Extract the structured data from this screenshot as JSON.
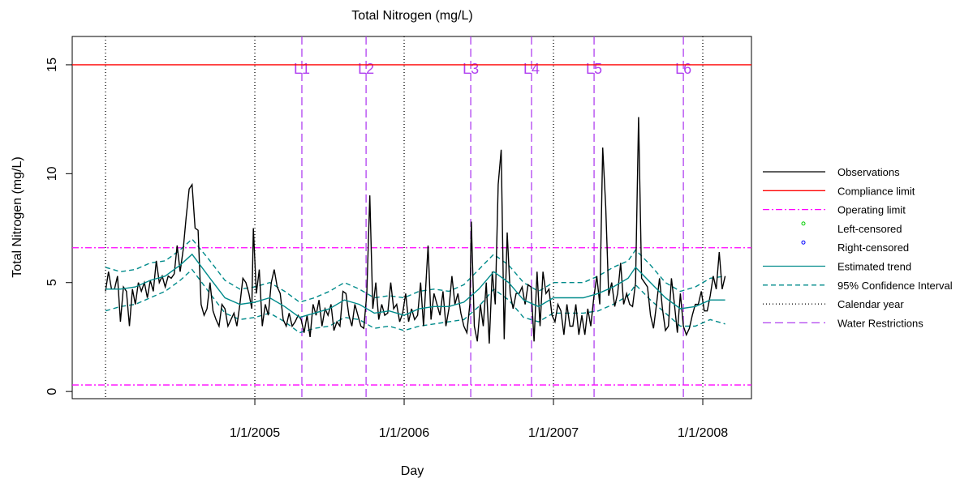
{
  "chart_data": {
    "type": "line",
    "title": "Total Nitrogen (mg/L)",
    "x_label": "Day",
    "y_label": "Total Nitrogen (mg/L)",
    "xlim": [
      2003.777,
      2008.326
    ],
    "ylim": [
      -0.33,
      16.3
    ],
    "xticks": [
      {
        "value": 2005,
        "label": "1/1/2005"
      },
      {
        "value": 2006,
        "label": "1/1/2006"
      },
      {
        "value": 2007,
        "label": "1/1/2007"
      },
      {
        "value": 2008,
        "label": "1/1/2008"
      }
    ],
    "yticks": [
      0,
      5,
      10,
      15
    ],
    "series": [
      {
        "name": "Observations",
        "color": "#000000",
        "kind": "line",
        "x": [
          2004.0,
          2004.02,
          2004.04,
          2004.06,
          2004.08,
          2004.1,
          2004.12,
          2004.14,
          2004.16,
          2004.18,
          2004.2,
          2004.22,
          2004.24,
          2004.26,
          2004.28,
          2004.3,
          2004.32,
          2004.34,
          2004.36,
          2004.38,
          2004.4,
          2004.42,
          2004.44,
          2004.46,
          2004.48,
          2004.5,
          2004.52,
          2004.54,
          2004.56,
          2004.58,
          2004.6,
          2004.62,
          2004.64,
          2004.66,
          2004.68,
          2004.7,
          2004.72,
          2004.74,
          2004.76,
          2004.78,
          2004.8,
          2004.82,
          2004.84,
          2004.86,
          2004.88,
          2004.9,
          2004.92,
          2004.94,
          2004.96,
          2004.98,
          2004.99,
          2005.01,
          2005.03,
          2005.05,
          2005.07,
          2005.09,
          2005.11,
          2005.13,
          2005.15,
          2005.17,
          2005.19,
          2005.21,
          2005.23,
          2005.25,
          2005.27,
          2005.29,
          2005.31,
          2005.33,
          2005.35,
          2005.37,
          2005.39,
          2005.41,
          2005.43,
          2005.45,
          2005.47,
          2005.49,
          2005.51,
          2005.53,
          2005.55,
          2005.57,
          2005.59,
          2005.61,
          2005.63,
          2005.65,
          2005.67,
          2005.69,
          2005.71,
          2005.73,
          2005.75,
          2005.77,
          2005.79,
          2005.81,
          2005.83,
          2005.85,
          2005.87,
          2005.89,
          2005.91,
          2005.93,
          2005.95,
          2005.97,
          2005.99,
          2006.01,
          2006.03,
          2006.05,
          2006.07,
          2006.09,
          2006.11,
          2006.13,
          2006.16,
          2006.18,
          2006.2,
          2006.22,
          2006.24,
          2006.26,
          2006.28,
          2006.3,
          2006.32,
          2006.34,
          2006.36,
          2006.38,
          2006.4,
          2006.42,
          2006.44,
          2006.45,
          2006.47,
          2006.49,
          2006.51,
          2006.53,
          2006.55,
          2006.57,
          2006.59,
          2006.61,
          2006.63,
          2006.65,
          2006.67,
          2006.69,
          2006.71,
          2006.73,
          2006.75,
          2006.77,
          2006.79,
          2006.81,
          2006.83,
          2006.85,
          2006.87,
          2006.89,
          2006.91,
          2006.93,
          2006.95,
          2006.97,
          2006.99,
          2007.01,
          2007.03,
          2007.05,
          2007.07,
          2007.09,
          2007.11,
          2007.13,
          2007.15,
          2007.17,
          2007.19,
          2007.21,
          2007.23,
          2007.25,
          2007.27,
          2007.29,
          2007.31,
          2007.33,
          2007.35,
          2007.37,
          2007.39,
          2007.41,
          2007.43,
          2007.45,
          2007.47,
          2007.49,
          2007.51,
          2007.53,
          2007.55,
          2007.57,
          2007.59,
          2007.61,
          2007.63,
          2007.65,
          2007.67,
          2007.69,
          2007.71,
          2007.73,
          2007.75,
          2007.77,
          2007.79,
          2007.81,
          2007.83,
          2007.85,
          2007.87,
          2007.89,
          2007.91,
          2007.93,
          2007.95,
          2007.97,
          2007.99,
          2008.01,
          2008.03,
          2008.05,
          2008.07,
          2008.09,
          2008.11,
          2008.13,
          2008.15
        ],
        "values": [
          4.6,
          5.5,
          4.7,
          4.7,
          5.3,
          3.2,
          4.8,
          4.6,
          3.0,
          4.7,
          4.0,
          5.0,
          4.6,
          5.0,
          4.3,
          5.1,
          4.6,
          6.0,
          5.0,
          5.3,
          4.8,
          5.3,
          5.2,
          5.4,
          6.7,
          5.5,
          6.5,
          8.0,
          9.3,
          9.5,
          7.5,
          7.4,
          4.0,
          3.5,
          3.8,
          5.0,
          3.7,
          3.3,
          3.0,
          4.0,
          3.8,
          3.0,
          3.3,
          3.6,
          3.0,
          4.0,
          5.2,
          5.0,
          4.5,
          3.8,
          7.5,
          4.5,
          5.6,
          3.0,
          4.0,
          3.5,
          5.0,
          5.6,
          4.8,
          4.5,
          3.3,
          3.0,
          3.6,
          3.0,
          3.2,
          3.5,
          3.3,
          2.7,
          3.5,
          2.5,
          4.0,
          3.5,
          4.2,
          3.0,
          3.8,
          3.5,
          4.0,
          2.8,
          3.2,
          3.0,
          4.6,
          4.5,
          3.5,
          3.0,
          4.0,
          3.5,
          3.0,
          2.9,
          4.5,
          9.0,
          3.8,
          5.0,
          3.3,
          4.0,
          3.5,
          3.6,
          5.0,
          3.8,
          4.0,
          3.2,
          3.6,
          4.5,
          3.2,
          3.8,
          3.3,
          3.5,
          5.0,
          3.0,
          6.7,
          3.3,
          4.5,
          4.0,
          3.5,
          4.6,
          3.0,
          3.8,
          5.3,
          4.0,
          4.5,
          3.6,
          3.0,
          2.7,
          4.0,
          7.8,
          3.0,
          2.3,
          4.0,
          3.0,
          5.0,
          2.2,
          5.5,
          4.0,
          9.5,
          11.1,
          2.4,
          7.3,
          4.5,
          3.8,
          4.5,
          4.5,
          4.8,
          4.0,
          4.9,
          4.8,
          2.3,
          5.5,
          3.0,
          5.5,
          4.5,
          4.7,
          3.5,
          3.2,
          4.0,
          3.7,
          2.6,
          4.0,
          3.0,
          3.0,
          4.0,
          2.6,
          3.5,
          2.6,
          3.8,
          3.0,
          4.3,
          5.3,
          4.0,
          11.2,
          8.5,
          4.4,
          5.0,
          3.9,
          4.5,
          5.9,
          4.0,
          4.5,
          4.0,
          3.9,
          5.0,
          12.6,
          5.2,
          5.0,
          4.8,
          3.5,
          2.9,
          4.0,
          5.2,
          3.8,
          2.8,
          3.0,
          5.2,
          4.0,
          2.7,
          4.5,
          3.0,
          2.6,
          2.9,
          3.5,
          4.0,
          4.0,
          4.6,
          3.7,
          3.7,
          4.4,
          5.3,
          4.7,
          6.4,
          4.7,
          5.3
        ]
      },
      {
        "name": "Compliance limit",
        "color": "#ff0000",
        "kind": "hline",
        "values": [
          15
        ]
      },
      {
        "name": "Operating limit",
        "color": "#ff00ff",
        "kind": "hline",
        "dash": "8 3 2 3",
        "values": [
          6.6,
          0.3
        ]
      },
      {
        "name": "Left-censored",
        "color": "#00cd00",
        "kind": "points",
        "x": [],
        "values": []
      },
      {
        "name": "Right-censored",
        "color": "#0000ff",
        "kind": "points",
        "x": [],
        "values": []
      },
      {
        "name": "Estimated trend",
        "color": "#008b8b",
        "kind": "line",
        "x": [
          2004.0,
          2004.1,
          2004.2,
          2004.3,
          2004.4,
          2004.5,
          2004.58,
          2004.7,
          2004.8,
          2004.9,
          2005.0,
          2005.1,
          2005.2,
          2005.3,
          2005.4,
          2005.5,
          2005.6,
          2005.7,
          2005.8,
          2005.9,
          2006.0,
          2006.1,
          2006.2,
          2006.3,
          2006.4,
          2006.5,
          2006.6,
          2006.7,
          2006.8,
          2006.9,
          2007.0,
          2007.1,
          2007.2,
          2007.3,
          2007.4,
          2007.5,
          2007.55,
          2007.65,
          2007.75,
          2007.85,
          2007.95,
          2008.05,
          2008.15
        ],
        "values": [
          4.7,
          4.7,
          4.8,
          5.1,
          5.3,
          5.8,
          6.3,
          5.2,
          4.3,
          4.0,
          4.1,
          4.3,
          3.9,
          3.4,
          3.6,
          3.8,
          4.2,
          4.0,
          3.6,
          3.7,
          3.5,
          3.8,
          3.9,
          3.9,
          4.1,
          4.7,
          5.5,
          5.0,
          4.2,
          3.9,
          4.3,
          4.3,
          4.3,
          4.5,
          4.8,
          5.2,
          5.7,
          5.0,
          4.3,
          3.8,
          3.9,
          4.2,
          4.2
        ]
      },
      {
        "name": "95% Confidence Interval",
        "color": "#008b8b",
        "kind": "band",
        "dash": "6 4",
        "x": [
          2004.0,
          2004.1,
          2004.2,
          2004.3,
          2004.4,
          2004.5,
          2004.58,
          2004.7,
          2004.8,
          2004.9,
          2005.0,
          2005.1,
          2005.2,
          2005.3,
          2005.4,
          2005.5,
          2005.6,
          2005.7,
          2005.8,
          2005.9,
          2006.0,
          2006.1,
          2006.2,
          2006.3,
          2006.4,
          2006.5,
          2006.6,
          2006.7,
          2006.8,
          2006.9,
          2007.0,
          2007.1,
          2007.2,
          2007.3,
          2007.4,
          2007.5,
          2007.55,
          2007.65,
          2007.75,
          2007.85,
          2007.95,
          2008.05,
          2008.15
        ],
        "upper": [
          5.7,
          5.5,
          5.6,
          5.9,
          6.0,
          6.5,
          7.0,
          6.0,
          5.1,
          4.7,
          4.8,
          5.0,
          4.6,
          4.1,
          4.3,
          4.6,
          5.0,
          4.7,
          4.3,
          4.4,
          4.3,
          4.6,
          4.7,
          4.6,
          4.9,
          5.6,
          6.3,
          5.8,
          5.0,
          4.6,
          5.0,
          5.0,
          5.0,
          5.3,
          5.7,
          6.0,
          6.5,
          5.8,
          5.0,
          4.6,
          4.8,
          5.2,
          5.3
        ],
        "lower": [
          3.7,
          3.9,
          4.0,
          4.3,
          4.6,
          5.1,
          5.6,
          4.5,
          3.6,
          3.3,
          3.4,
          3.6,
          3.2,
          2.7,
          2.9,
          3.0,
          3.4,
          3.3,
          2.9,
          3.0,
          2.8,
          3.0,
          3.1,
          3.2,
          3.3,
          3.9,
          4.7,
          4.2,
          3.4,
          3.2,
          3.6,
          3.6,
          3.6,
          3.7,
          4.0,
          4.4,
          4.9,
          4.2,
          3.6,
          3.0,
          3.0,
          3.3,
          3.1
        ]
      },
      {
        "name": "Calendar year",
        "color": "#000000",
        "kind": "vline",
        "dash": "1 3",
        "x": [
          2004,
          2005,
          2006,
          2007,
          2008
        ]
      },
      {
        "name": "Water Restrictions",
        "color": "#b040f0",
        "kind": "vline",
        "dash": "10 5",
        "x": [
          2005.315,
          2005.745,
          2006.446,
          2006.853,
          2007.272,
          2007.87
        ],
        "labels": [
          "L1",
          "L2",
          "L3",
          "L4",
          "L5",
          "L6"
        ]
      }
    ]
  }
}
